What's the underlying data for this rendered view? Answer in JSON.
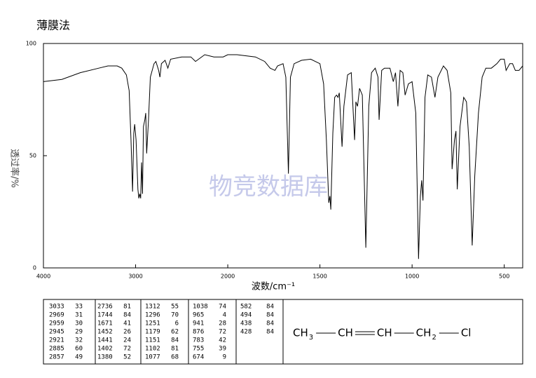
{
  "title": "薄膜法",
  "watermark": "物竞数据库",
  "chart_data": {
    "type": "line",
    "xlabel": "波数/cm⁻¹",
    "ylabel": "透过率/%",
    "color": "#000000",
    "xlim": [
      4000,
      400
    ],
    "xticks": [
      4000,
      3000,
      2000,
      1500,
      1000,
      500
    ],
    "ylim": [
      0,
      100
    ],
    "yticks": [
      0,
      50,
      100
    ],
    "grid": false,
    "x": [
      4000,
      3800,
      3600,
      3400,
      3300,
      3200,
      3150,
      3100,
      3070,
      3050,
      3033,
      3020,
      3010,
      2995,
      2975,
      2965,
      2955,
      2945,
      2935,
      2925,
      2915,
      2900,
      2890,
      2880,
      2860,
      2840,
      2800,
      2780,
      2750,
      2736,
      2720,
      2680,
      2650,
      2620,
      2500,
      2400,
      2350,
      2250,
      2150,
      2050,
      2000,
      1950,
      1850,
      1800,
      1770,
      1744,
      1730,
      1700,
      1685,
      1671,
      1660,
      1640,
      1600,
      1550,
      1500,
      1480,
      1465,
      1452,
      1446,
      1441,
      1430,
      1420,
      1410,
      1402,
      1395,
      1380,
      1370,
      1350,
      1330,
      1312,
      1305,
      1296,
      1285,
      1270,
      1251,
      1235,
      1220,
      1200,
      1185,
      1179,
      1165,
      1150,
      1120,
      1102,
      1090,
      1077,
      1065,
      1050,
      1038,
      1020,
      1000,
      980,
      965,
      955,
      948,
      941,
      930,
      915,
      895,
      876,
      860,
      830,
      810,
      790,
      783,
      770,
      762,
      755,
      740,
      720,
      705,
      690,
      674,
      660,
      640,
      620,
      600,
      570,
      540,
      520,
      500,
      490,
      470,
      455,
      440,
      420,
      400
    ],
    "values": [
      83,
      84,
      87,
      89,
      90,
      90,
      89,
      86,
      79,
      57,
      34,
      60,
      64,
      57,
      35,
      31,
      33,
      31,
      47,
      33,
      63,
      66,
      69,
      51,
      66,
      85,
      91,
      92,
      88,
      85,
      91,
      92.5,
      89,
      93,
      94,
      94,
      92,
      95,
      94,
      94,
      95,
      95,
      94,
      92,
      89,
      88,
      90,
      91,
      85,
      42,
      85,
      91,
      92.5,
      93,
      91,
      82,
      57,
      29,
      32,
      26,
      60,
      76,
      77,
      76,
      78,
      54,
      72,
      86,
      87,
      57,
      74,
      72,
      80,
      77,
      9,
      72,
      87,
      89,
      85,
      66,
      88,
      89,
      89,
      83,
      87,
      72,
      88,
      87,
      77,
      82,
      83,
      69,
      4,
      32,
      39,
      30,
      76,
      86,
      85,
      76,
      85,
      90,
      88,
      78,
      44,
      57,
      61,
      35,
      63,
      76,
      74,
      54,
      10,
      41,
      69,
      85,
      89,
      89,
      91,
      93,
      93,
      88,
      91,
      91,
      88,
      88,
      90
    ]
  },
  "peak_table": [
    [
      [
        3033,
        33
      ],
      [
        2969,
        31
      ],
      [
        2959,
        30
      ],
      [
        2945,
        29
      ],
      [
        2921,
        32
      ],
      [
        2885,
        60
      ],
      [
        2857,
        49
      ]
    ],
    [
      [
        2736,
        81
      ],
      [
        1744,
        84
      ],
      [
        1671,
        41
      ],
      [
        1452,
        26
      ],
      [
        1441,
        24
      ],
      [
        1402,
        72
      ],
      [
        1380,
        52
      ]
    ],
    [
      [
        1312,
        55
      ],
      [
        1296,
        70
      ],
      [
        1251,
        6
      ],
      [
        1179,
        62
      ],
      [
        1151,
        84
      ],
      [
        1102,
        81
      ],
      [
        1077,
        68
      ]
    ],
    [
      [
        1038,
        74
      ],
      [
        965,
        4
      ],
      [
        941,
        28
      ],
      [
        876,
        72
      ],
      [
        783,
        42
      ],
      [
        755,
        39
      ],
      [
        674,
        9
      ]
    ],
    [
      [
        582,
        84
      ],
      [
        494,
        84
      ],
      [
        438,
        84
      ],
      [
        428,
        84
      ]
    ]
  ],
  "structure": [
    {
      "text": "CH",
      "sub": "3"
    },
    {
      "text": "CH"
    },
    {
      "text": "CH"
    },
    {
      "text": "CH",
      "sub": "2"
    },
    {
      "text": "Cl"
    }
  ]
}
